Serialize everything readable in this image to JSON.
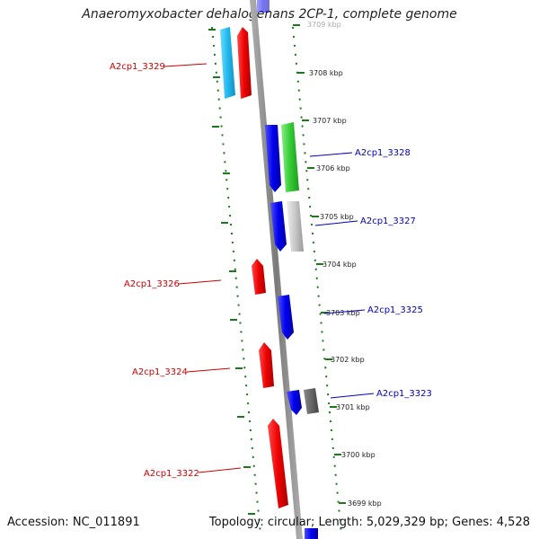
{
  "title": "Anaeromyxobacter dehalogenans 2CP-1, complete genome",
  "footer": {
    "accession": "Accession: NC_011891",
    "info": "Topology: circular; Length: 5,029,329 bp; Genes: 4,528"
  },
  "colors": {
    "forward_gene": "#ee0000",
    "reverse_gene": "#0000ee",
    "label_forward": "#cc0000",
    "label_reverse": "#0000bb",
    "dotted_guides": "#1a7a1a",
    "backbone": "#888888"
  },
  "ticks": [
    {
      "label": "3709 kbp",
      "faded": true
    },
    {
      "label": "3708 kbp"
    },
    {
      "label": "3707 kbp"
    },
    {
      "label": "3706 kbp"
    },
    {
      "label": "3705 kbp"
    },
    {
      "label": "3704 kbp"
    },
    {
      "label": "3703 kbp"
    },
    {
      "label": "3702 kbp"
    },
    {
      "label": "3701 kbp"
    },
    {
      "label": "3700 kbp"
    },
    {
      "label": "3699 kbp"
    }
  ],
  "gene_labels": [
    {
      "text": "A2cp1_3329",
      "strand": "forward"
    },
    {
      "text": "A2cp1_3328",
      "strand": "reverse"
    },
    {
      "text": "A2cp1_3327",
      "strand": "reverse"
    },
    {
      "text": "A2cp1_3326",
      "strand": "forward"
    },
    {
      "text": "A2cp1_3325",
      "strand": "reverse"
    },
    {
      "text": "A2cp1_3324",
      "strand": "forward"
    },
    {
      "text": "A2cp1_3323",
      "strand": "reverse"
    },
    {
      "text": "A2cp1_3322",
      "strand": "forward"
    }
  ]
}
